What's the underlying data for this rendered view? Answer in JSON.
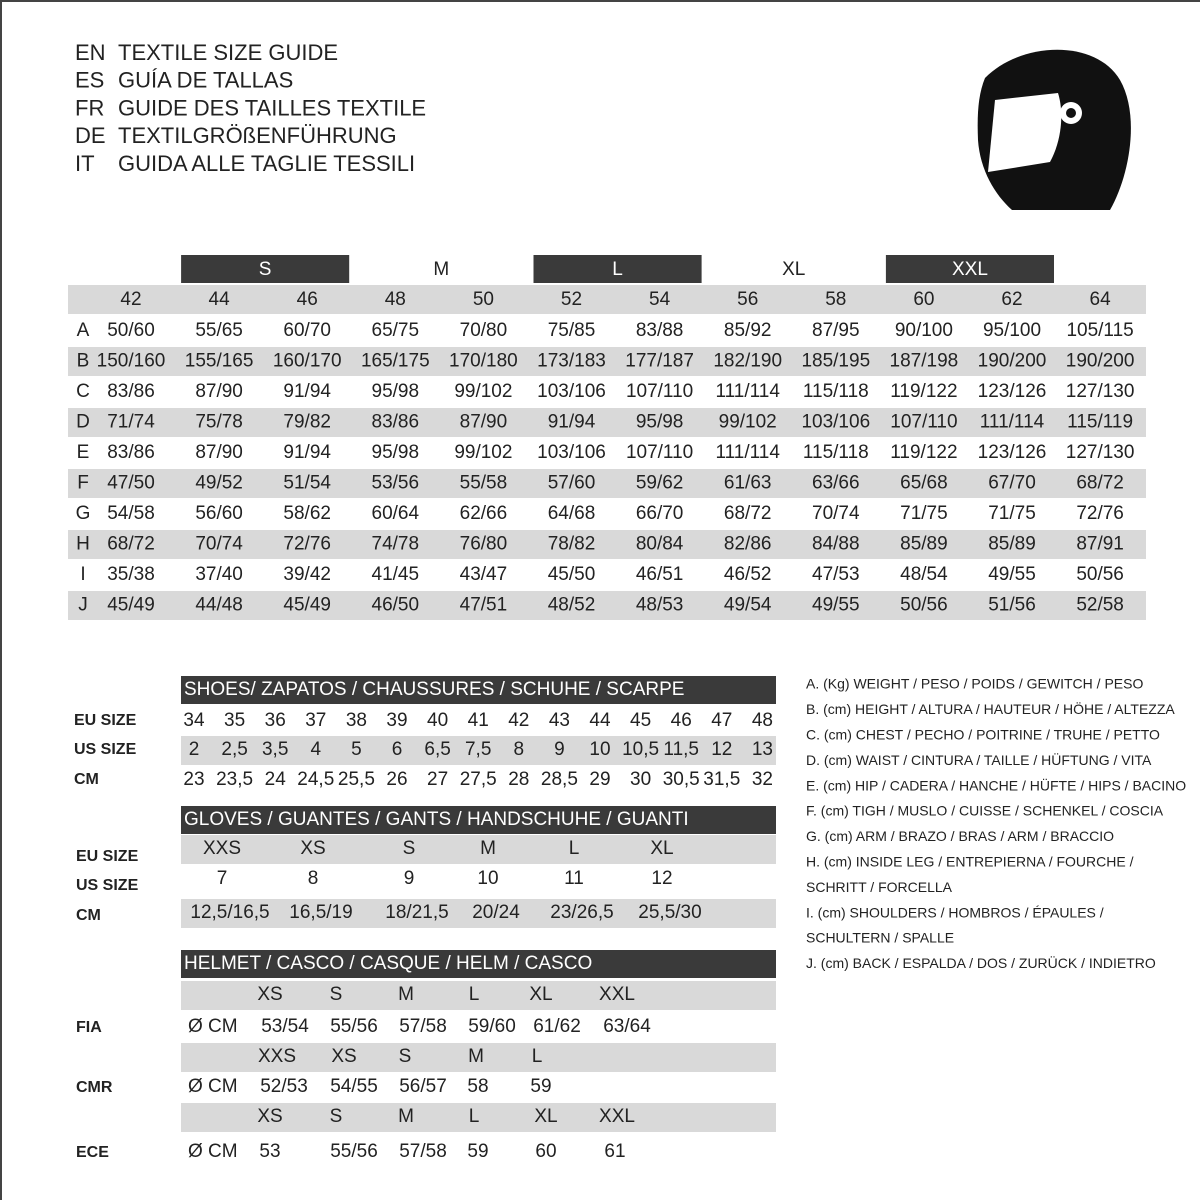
{
  "header": {
    "lines": [
      {
        "code": "EN",
        "text": "TEXTILE SIZE GUIDE"
      },
      {
        "code": "ES",
        "text": "GUÍA DE TALLAS"
      },
      {
        "code": "FR",
        "text": "GUIDE DES TAILLES TEXTILE"
      },
      {
        "code": "DE",
        "text": "TEXTILGRÖßENFÜHRUNG"
      },
      {
        "code": "IT",
        "text": "GUIDA ALLE TAGLIE TESSILI"
      }
    ]
  },
  "size_table": {
    "groups": [
      "S",
      "M",
      "L",
      "XL",
      "XXL"
    ],
    "sizes": [
      "42",
      "44",
      "46",
      "48",
      "50",
      "52",
      "54",
      "56",
      "58",
      "60",
      "62",
      "64"
    ],
    "rows": [
      {
        "label": "A",
        "cells": [
          "50/60",
          "55/65",
          "60/70",
          "65/75",
          "70/80",
          "75/85",
          "83/88",
          "85/92",
          "87/95",
          "90/100",
          "95/100",
          "105/115"
        ]
      },
      {
        "label": "B",
        "cells": [
          "150/160",
          "155/165",
          "160/170",
          "165/175",
          "170/180",
          "173/183",
          "177/187",
          "182/190",
          "185/195",
          "187/198",
          "190/200",
          "190/200"
        ]
      },
      {
        "label": "C",
        "cells": [
          "83/86",
          "87/90",
          "91/94",
          "95/98",
          "99/102",
          "103/106",
          "107/110",
          "111/114",
          "115/118",
          "119/122",
          "123/126",
          "127/130"
        ]
      },
      {
        "label": "D",
        "cells": [
          "71/74",
          "75/78",
          "79/82",
          "83/86",
          "87/90",
          "91/94",
          "95/98",
          "99/102",
          "103/106",
          "107/110",
          "111/114",
          "115/119"
        ]
      },
      {
        "label": "E",
        "cells": [
          "83/86",
          "87/90",
          "91/94",
          "95/98",
          "99/102",
          "103/106",
          "107/110",
          "111/114",
          "115/118",
          "119/122",
          "123/126",
          "127/130"
        ]
      },
      {
        "label": "F",
        "cells": [
          "47/50",
          "49/52",
          "51/54",
          "53/56",
          "55/58",
          "57/60",
          "59/62",
          "61/63",
          "63/66",
          "65/68",
          "67/70",
          "68/72"
        ]
      },
      {
        "label": "G",
        "cells": [
          "54/58",
          "56/60",
          "58/62",
          "60/64",
          "62/66",
          "64/68",
          "66/70",
          "68/72",
          "70/74",
          "71/75",
          "71/75",
          "72/76"
        ]
      },
      {
        "label": "H",
        "cells": [
          "68/72",
          "70/74",
          "72/76",
          "74/78",
          "76/80",
          "78/82",
          "80/84",
          "82/86",
          "84/88",
          "85/89",
          "85/89",
          "87/91"
        ]
      },
      {
        "label": "I",
        "cells": [
          "35/38",
          "37/40",
          "39/42",
          "41/45",
          "43/47",
          "45/50",
          "46/51",
          "46/52",
          "47/53",
          "48/54",
          "49/55",
          "50/56"
        ]
      },
      {
        "label": "J",
        "cells": [
          "45/49",
          "44/48",
          "45/49",
          "46/50",
          "47/51",
          "48/52",
          "48/53",
          "49/54",
          "49/55",
          "50/56",
          "51/56",
          "52/58"
        ]
      }
    ]
  },
  "shoes": {
    "title": "SHOES/ ZAPATOS / CHAUSSURES / SCHUHE / SCARPE",
    "rows": [
      {
        "label": "EU SIZE",
        "cells": [
          "34",
          "35",
          "36",
          "37",
          "38",
          "39",
          "40",
          "41",
          "42",
          "43",
          "44",
          "45",
          "46",
          "47",
          "48"
        ]
      },
      {
        "label": "US SIZE",
        "cells": [
          "2",
          "2,5",
          "3,5",
          "4",
          "5",
          "6",
          "6,5",
          "7,5",
          "8",
          "9",
          "10",
          "10,5",
          "11,5",
          "12",
          "13"
        ]
      },
      {
        "label": "CM",
        "cells": [
          "23",
          "23,5",
          "24",
          "24,5",
          "25,5",
          "26",
          "27",
          "27,5",
          "28",
          "28,5",
          "29",
          "30",
          "30,5",
          "31,5",
          "32"
        ]
      }
    ]
  },
  "gloves": {
    "title": "GLOVES / GUANTES / GANTS / HANDSCHUHE / GUANTI",
    "labels": [
      "EU SIZE",
      "US SIZE",
      "CM"
    ],
    "rows": [
      [
        "XXS",
        "XS",
        "S",
        "M",
        "L",
        "XL"
      ],
      [
        "7",
        "8",
        "9",
        "10",
        "11",
        "12"
      ],
      [
        "12,5/16,5",
        "16,5/19",
        "18/21,5",
        "20/24",
        "23/26,5",
        "25,5/30"
      ]
    ]
  },
  "helmet": {
    "title": "HELMET / CASCO / CASQUE / HELM / CASCO",
    "groups": [
      {
        "label": "FIA",
        "unit": "Ø CM",
        "sizes": [
          "XS",
          "S",
          "M",
          "L",
          "XL",
          "XXL"
        ],
        "values": [
          "53/54",
          "55/56",
          "57/58",
          "59/60",
          "61/62",
          "63/64"
        ]
      },
      {
        "label": "CMR",
        "unit": "Ø CM",
        "sizes": [
          "XXS",
          "XS",
          "S",
          "M",
          "L"
        ],
        "values": [
          "52/53",
          "54/55",
          "56/57",
          "58",
          "59"
        ]
      },
      {
        "label": "ECE",
        "unit": "Ø CM",
        "sizes": [
          "XS",
          "S",
          "M",
          "L",
          "XL",
          "XXL"
        ],
        "values": [
          "53",
          "55/56",
          "57/58",
          "59",
          "60",
          "61"
        ]
      }
    ]
  },
  "legend": [
    "A. (Kg) WEIGHT / PESO / POIDS / GEWITCH / PESO",
    "B. (cm) HEIGHT / ALTURA / HAUTEUR / HÖHE / ALTEZZA",
    "C. (cm) CHEST / PECHO / POITRINE / TRUHE / PETTO",
    "D. (cm) WAIST / CINTURA / TAILLE / HÜFTUNG / VITA",
    "E. (cm) HIP / CADERA / HANCHE / HÜFTE / HIPS /  BACINO",
    "F.  (cm) TIGH / MUSLO / CUISSE / SCHENKEL / COSCIA",
    "G. (cm) ARM  / BRAZO / BRAS / ARM / BRACCIO",
    "H. (cm) INSIDE LEG / ENTREPIERNA / FOURCHE /",
    "SCHRITT / FORCELLA",
    "I.  (cm) SHOULDERS / HOMBROS / ÉPAULES /",
    "SCHULTERN / SPALLE",
    "J. (cm) BACK / ESPALDA / DOS / ZURÜCK / INDIETRO"
  ]
}
